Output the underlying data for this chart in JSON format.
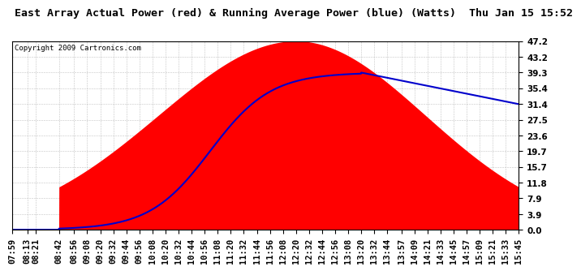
{
  "title": "East Array Actual Power (red) & Running Average Power (blue) (Watts)  Thu Jan 15 15:52",
  "copyright": "Copyright 2009 Cartronics.com",
  "y_ticks": [
    0.0,
    3.9,
    7.9,
    11.8,
    15.7,
    19.7,
    23.6,
    27.5,
    31.4,
    35.4,
    39.3,
    43.2,
    47.2
  ],
  "y_max": 47.2,
  "y_min": 0.0,
  "actual_color": "#ff0000",
  "average_color": "#0000cc",
  "background_color": "#ffffff",
  "plot_bg_color": "#ffffff",
  "grid_color": "#aaaaaa",
  "title_fontsize": 9.5,
  "copyright_fontsize": 6.5,
  "tick_fontsize": 7.5
}
